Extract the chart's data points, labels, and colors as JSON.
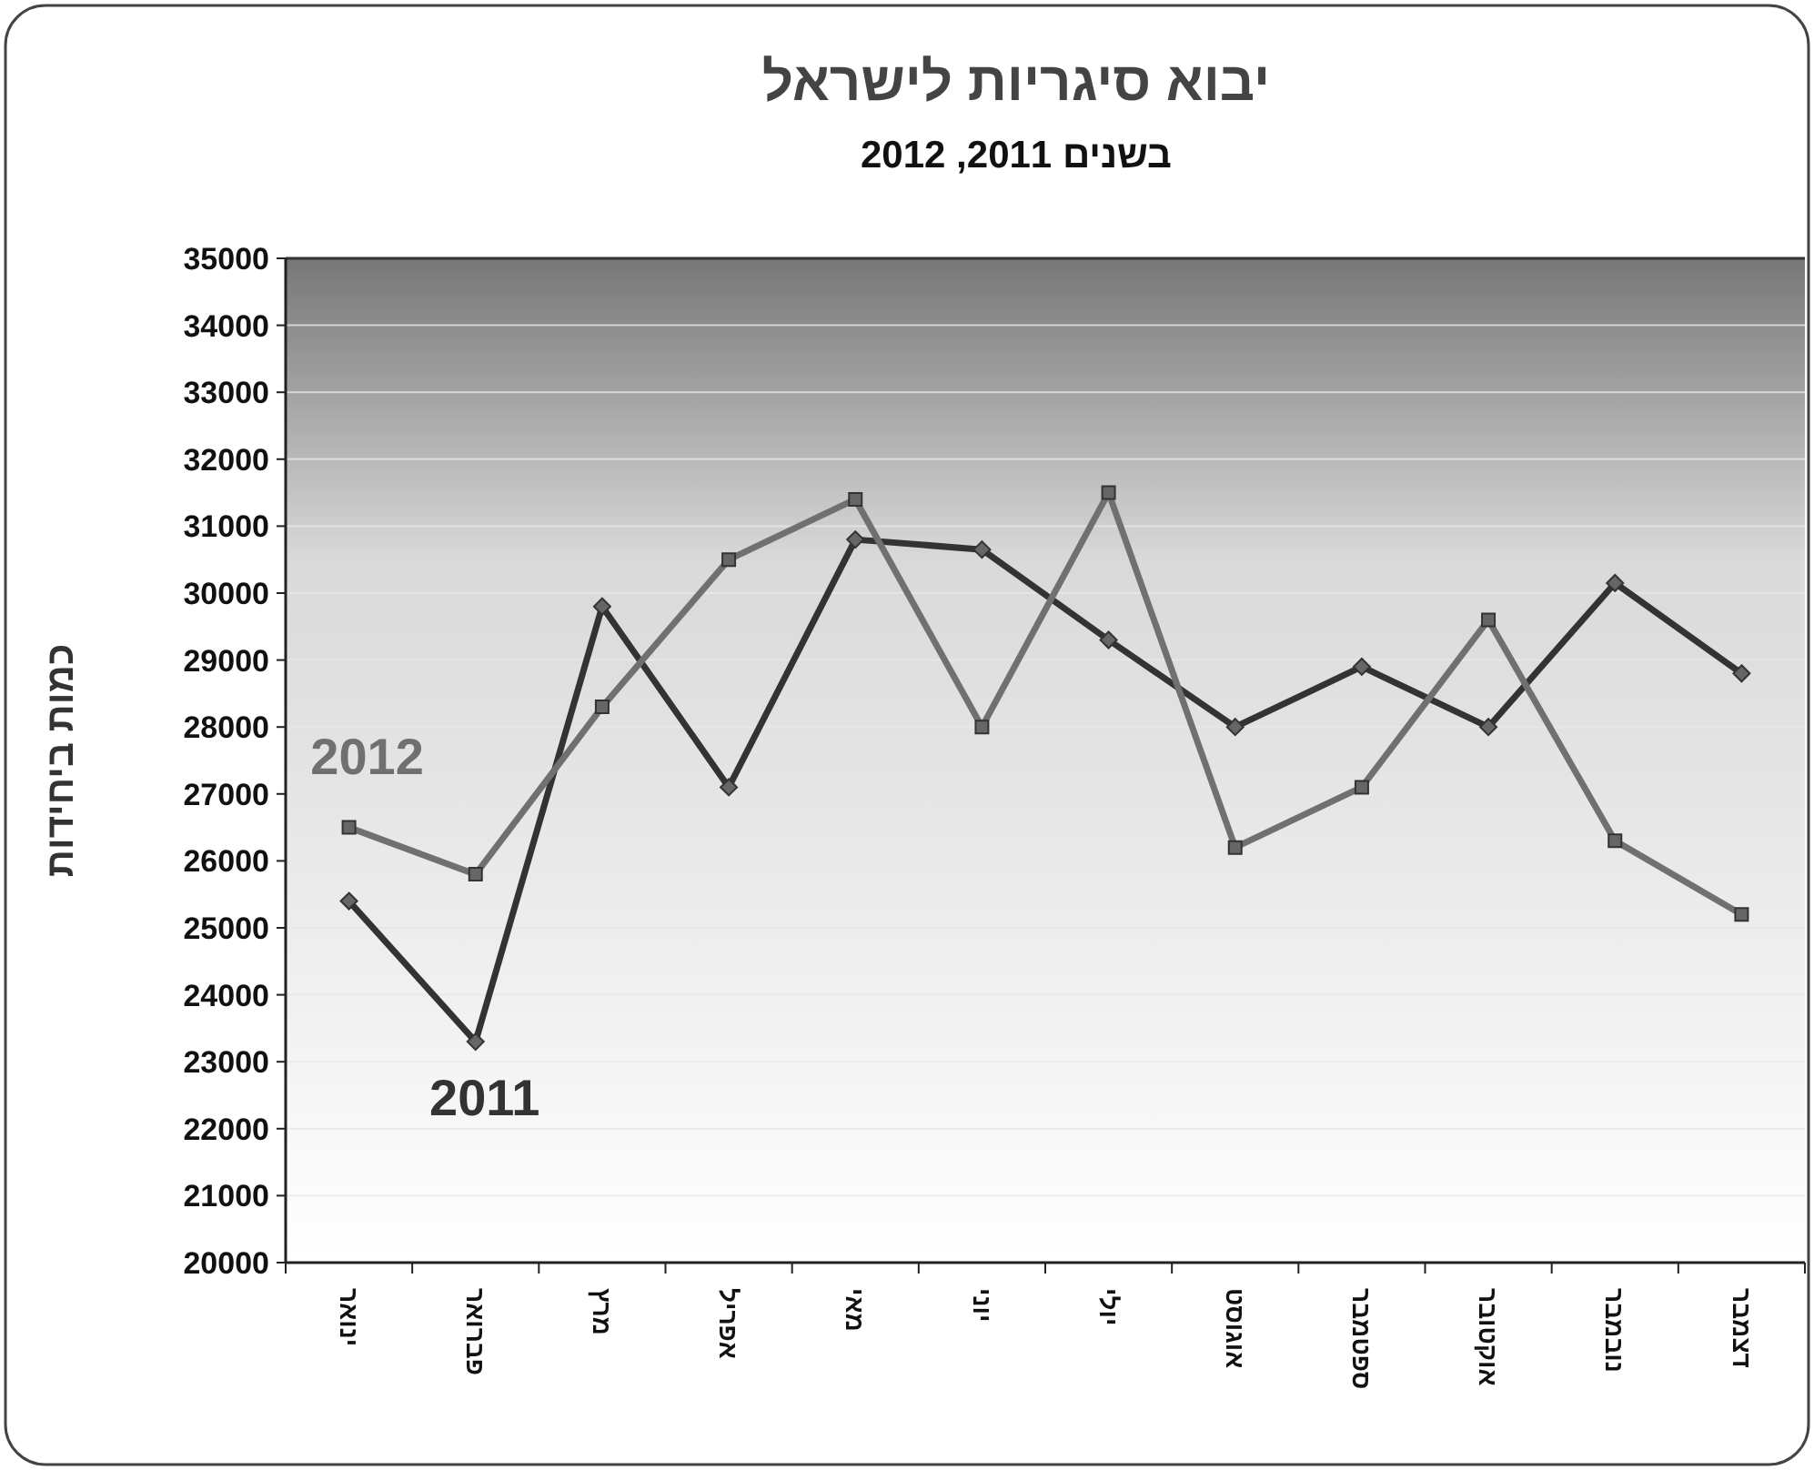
{
  "chart_data": {
    "type": "line",
    "title": "יבוא סיגריות לישראל",
    "subtitle": "בשנים 2011, 2012",
    "ylabel": "כמות ביחידות",
    "categories": [
      "ינואר",
      "פברואר",
      "מרץ",
      "אפריל",
      "מאי",
      "יוני",
      "יולי",
      "אוגוסט",
      "ספטמבר",
      "אוקטובר",
      "נובמבר",
      "דצמבר"
    ],
    "series": [
      {
        "name": "2011",
        "color": "#333333",
        "marker": "diamond",
        "values": [
          25400,
          23300,
          29800,
          27100,
          30800,
          30650,
          29300,
          28000,
          28900,
          28000,
          30150,
          28800
        ]
      },
      {
        "name": "2012",
        "color": "#707070",
        "marker": "square",
        "values": [
          26500,
          25800,
          28300,
          30500,
          31400,
          28000,
          31500,
          26200,
          27100,
          29600,
          26300,
          25200
        ]
      }
    ],
    "ylim": [
      20000,
      35000
    ],
    "yticks": [
      20000,
      21000,
      22000,
      23000,
      24000,
      25000,
      26000,
      27000,
      28000,
      29000,
      30000,
      31000,
      32000,
      33000,
      34000,
      35000
    ],
    "grid": "y"
  }
}
